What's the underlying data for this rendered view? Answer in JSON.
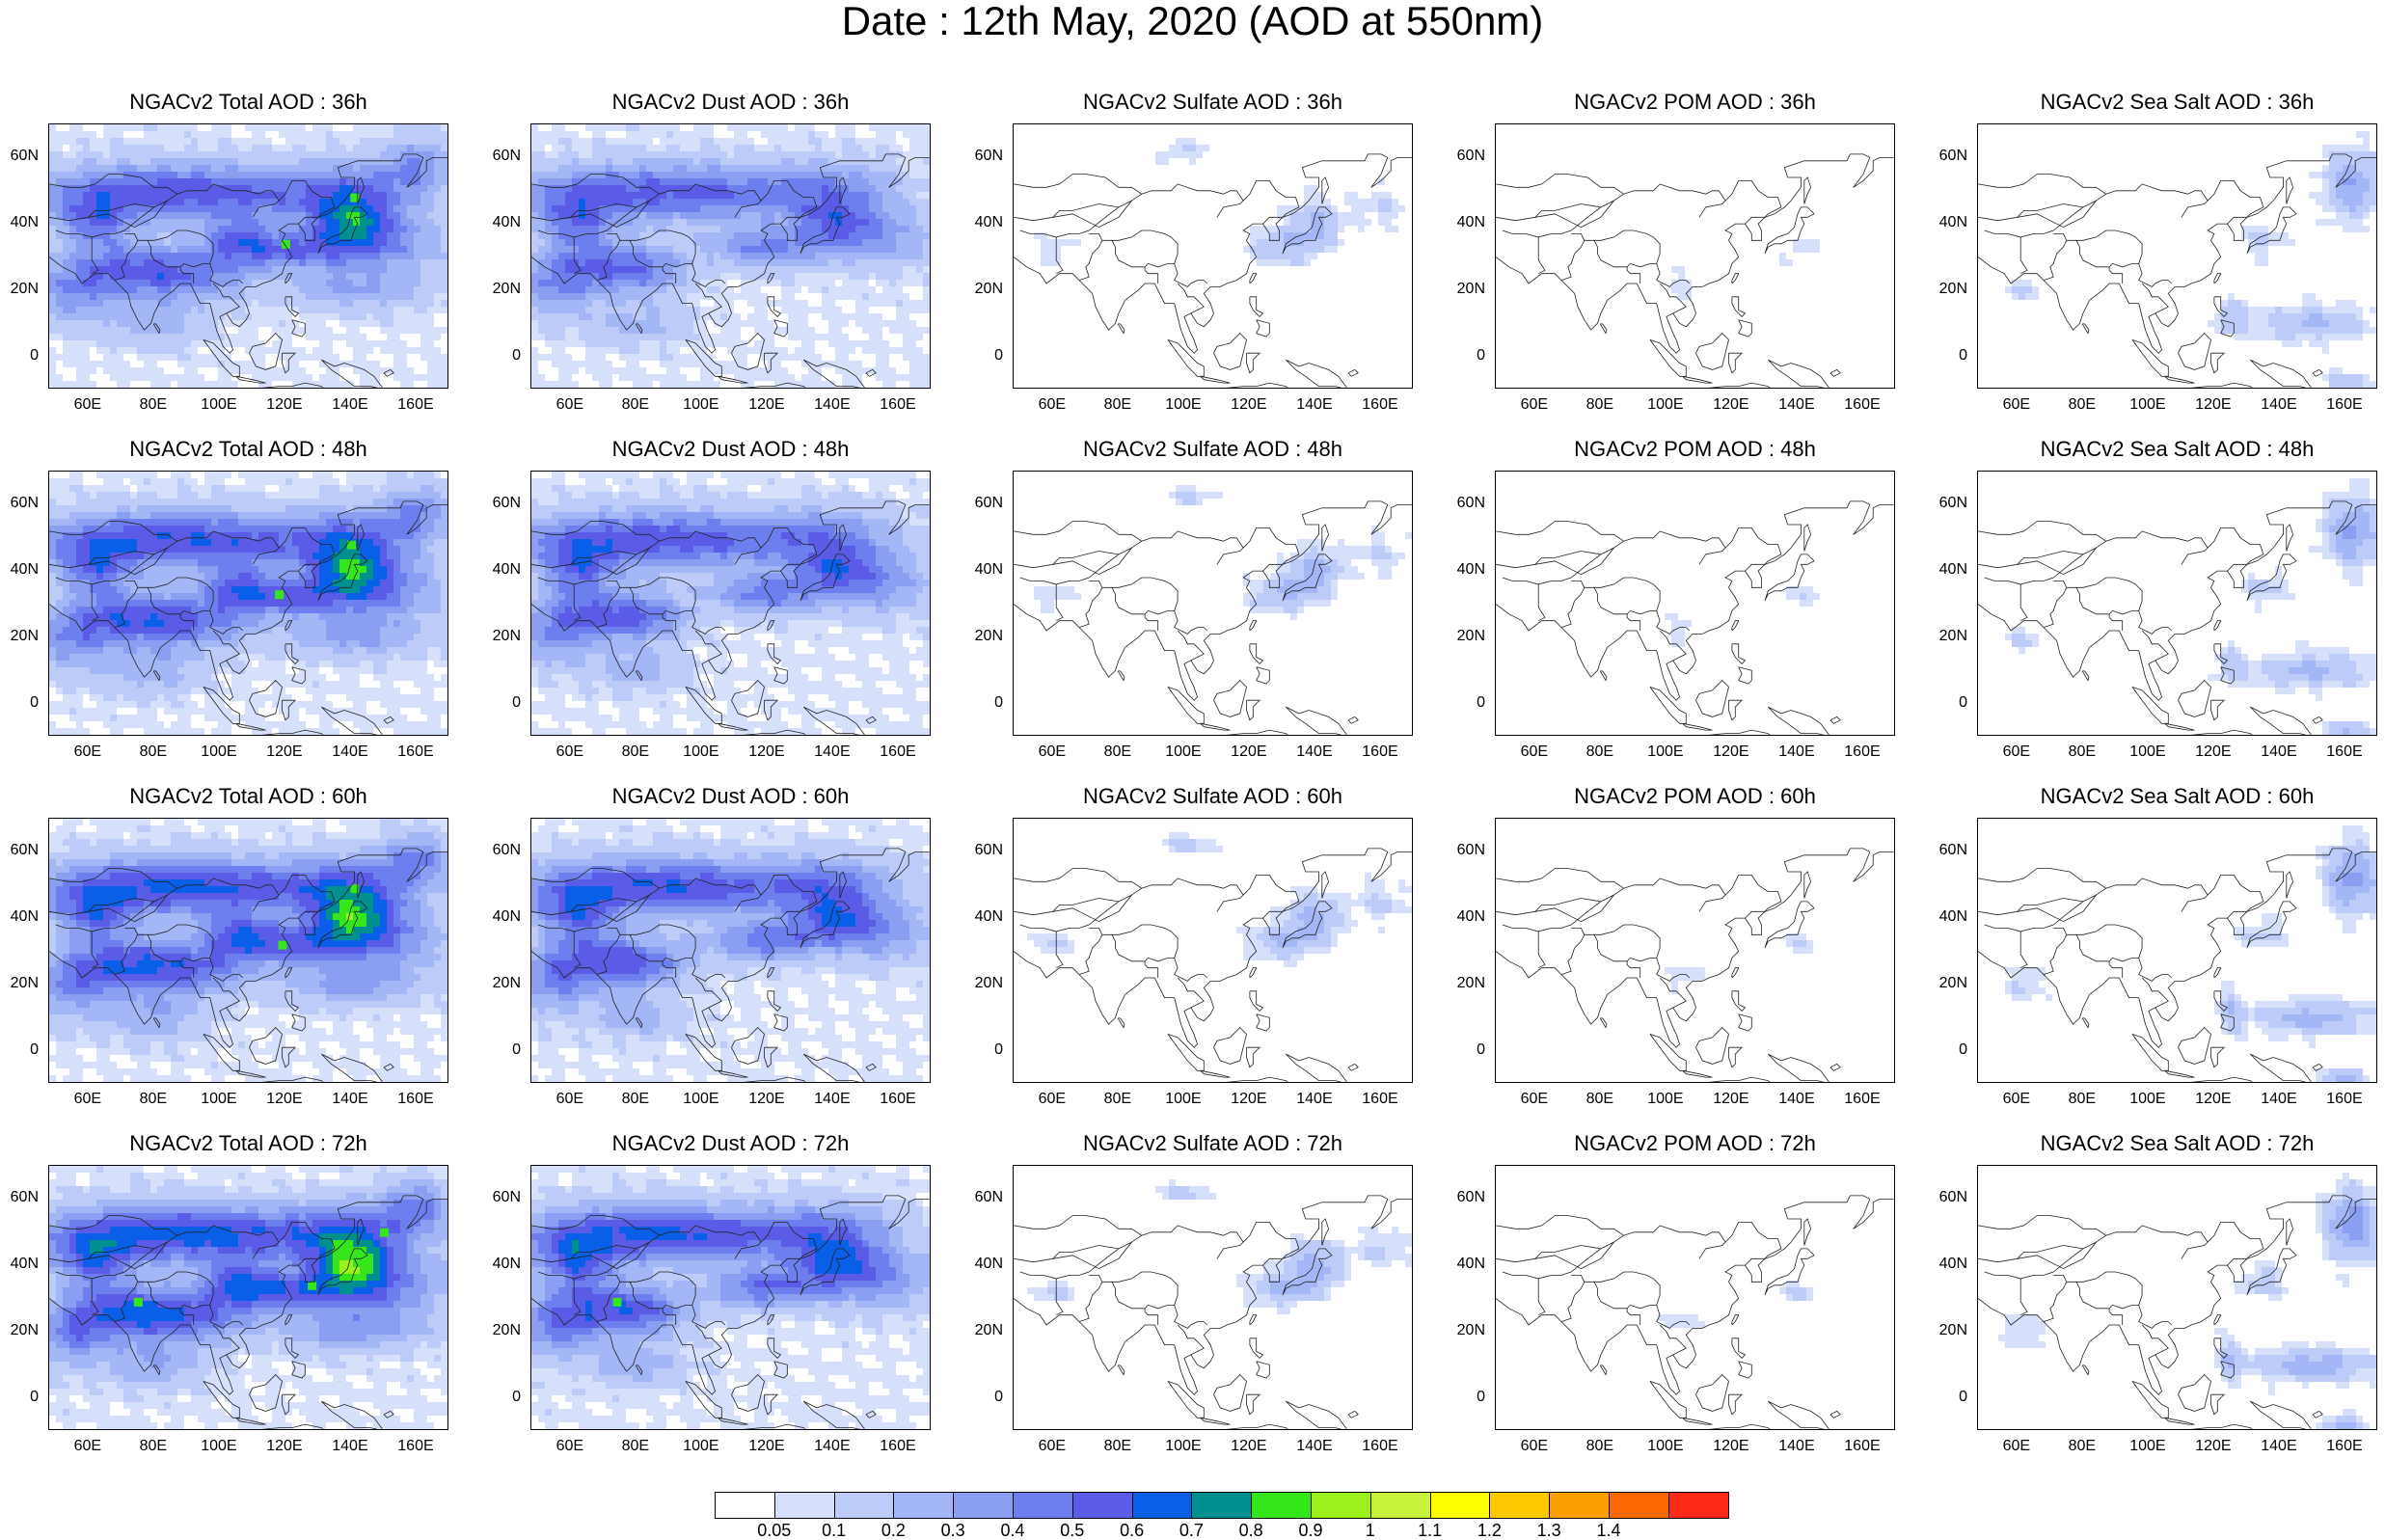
{
  "title": "Date : 12th May, 2020 (AOD at 550nm)",
  "panel_titles": [
    [
      "NGACv2 Total AOD : 36h",
      "NGACv2 Dust AOD : 36h",
      "NGACv2 Sulfate AOD : 36h",
      "NGACv2 POM AOD : 36h",
      "NGACv2 Sea Salt AOD : 36h"
    ],
    [
      "NGACv2 Total AOD : 48h",
      "NGACv2 Dust AOD : 48h",
      "NGACv2 Sulfate AOD : 48h",
      "NGACv2 POM AOD : 48h",
      "NGACv2 Sea Salt AOD : 48h"
    ],
    [
      "NGACv2 Total AOD : 60h",
      "NGACv2 Dust AOD : 60h",
      "NGACv2 Sulfate AOD : 60h",
      "NGACv2 POM AOD : 60h",
      "NGACv2 Sea Salt AOD : 60h"
    ],
    [
      "NGACv2 Total AOD : 72h",
      "NGACv2 Dust AOD : 72h",
      "NGACv2 Sulfate AOD : 72h",
      "NGACv2 POM AOD : 72h",
      "NGACv2 Sea Salt  AOD : 72h"
    ]
  ],
  "lat_ticks": [
    "60N",
    "40N",
    "20N",
    "0"
  ],
  "lon_ticks": [
    "60E",
    "80E",
    "100E",
    "120E",
    "140E",
    "160E"
  ],
  "colorbar": {
    "levels": [
      "0.05",
      "0.1",
      "0.2",
      "0.3",
      "0.4",
      "0.5",
      "0.6",
      "0.7",
      "0.8",
      "0.9",
      "1",
      "1.1",
      "1.2",
      "1.3",
      "1.4"
    ],
    "colors": [
      "#ffffff",
      "#d6e0fb",
      "#bccbf8",
      "#a3b6f5",
      "#8a9ff2",
      "#6d7fee",
      "#5a5ce8",
      "#0a5fe8",
      "#009090",
      "#36e61c",
      "#9cf11c",
      "#c8f23a",
      "#ffff00",
      "#fcc800",
      "#fca000",
      "#fc6800",
      "#fc2a14"
    ]
  }
}
